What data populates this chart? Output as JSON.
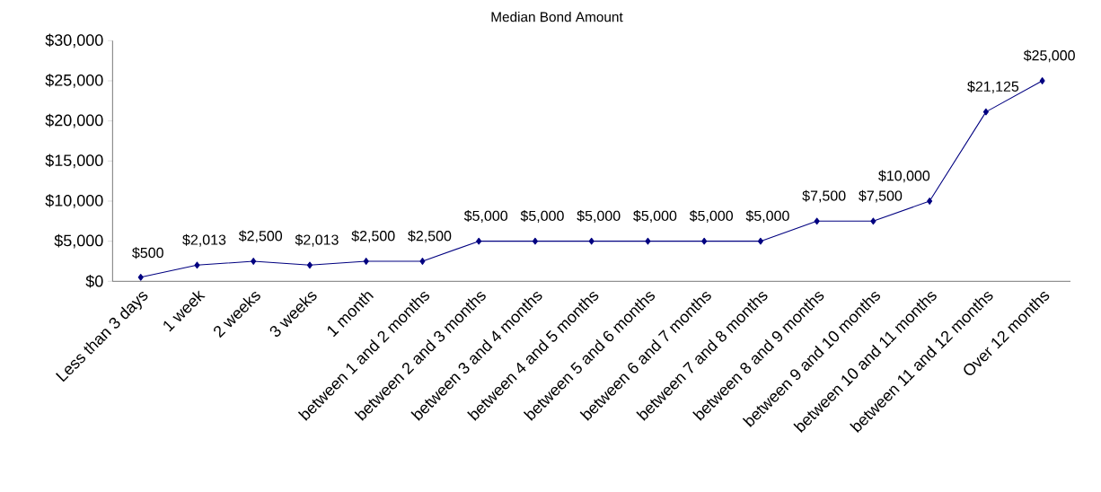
{
  "chart_data": {
    "type": "line",
    "title": "Median Bond Amount",
    "categories": [
      "Less than 3 days",
      "1 week",
      "2 weeks",
      "3 weeks",
      "1 month",
      "between 1 and 2 months",
      "between 2 and 3 months",
      "between 3 and 4 months",
      "between 4 and 5 months",
      "between 5 and 6 months",
      "between 6 and 7 months",
      "between 7 and 8 months",
      "between 8 and 9 months",
      "between 9 and 10 months",
      "between 10 and 11 months",
      "between 11 and 12 months",
      "Over 12 months"
    ],
    "values": [
      500,
      2013,
      2500,
      2013,
      2500,
      2500,
      5000,
      5000,
      5000,
      5000,
      5000,
      5000,
      7500,
      7500,
      10000,
      21125,
      25000
    ],
    "value_labels": [
      "$500",
      "$2,013",
      "$2,500",
      "$2,013",
      "$2,500",
      "$2,500",
      "$5,000",
      "$5,000",
      "$5,000",
      "$5,000",
      "$5,000",
      "$5,000",
      "$7,500",
      "$7,500",
      "$10,000",
      "$21,125",
      "$25,000"
    ],
    "color": "#000080",
    "marker": "diamond",
    "line_style": "solid",
    "ylim": [
      0,
      30000
    ],
    "yticks": [
      {
        "value": 0,
        "label": "$0"
      },
      {
        "value": 5000,
        "label": "$5,000"
      },
      {
        "value": 10000,
        "label": "$10,000"
      },
      {
        "value": 15000,
        "label": "$15,000"
      },
      {
        "value": 20000,
        "label": "$20,000"
      },
      {
        "value": 25000,
        "label": "$25,000"
      },
      {
        "value": 30000,
        "label": "$30,000"
      }
    ]
  }
}
